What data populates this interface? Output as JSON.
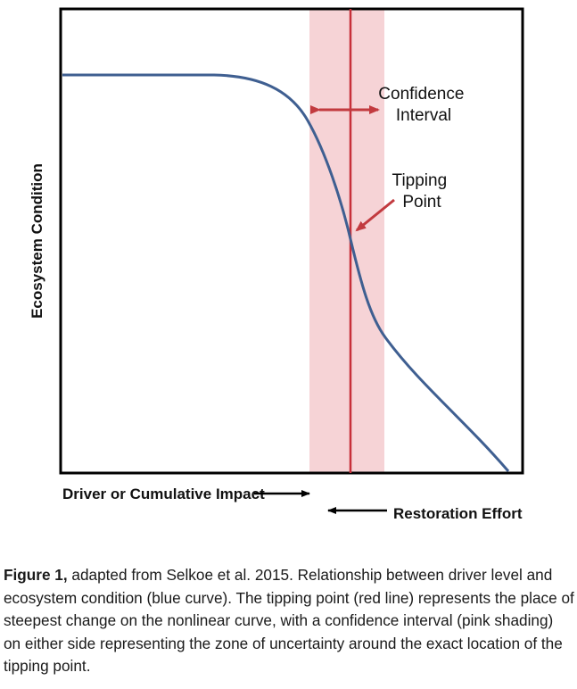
{
  "diagram": {
    "y_axis_label": "Ecosystem Condition",
    "x_axis_label": "Driver or Cumulative Impact",
    "reverse_label": "Restoration Effort",
    "confidence_label": [
      "Confidence",
      "Interval"
    ],
    "tipping_label": [
      "Tipping",
      "Point"
    ],
    "colors": {
      "curve": "#3f5f91",
      "tipping_line": "#c7303a",
      "confidence_band": "#f6d3d6",
      "arrows": "#c23a3f",
      "axis": "#000000"
    }
  },
  "caption": {
    "label": "Figure 1,",
    "text": " adapted from Selkoe et al. 2015. Relationship between driver level and ecosystem condition (blue curve). The tipping point (red line) represents the place of steepest change on the nonlinear curve, with a confidence interval (pink shading) on either side representing the zone of uncertainty around the exact location of the tipping point."
  }
}
